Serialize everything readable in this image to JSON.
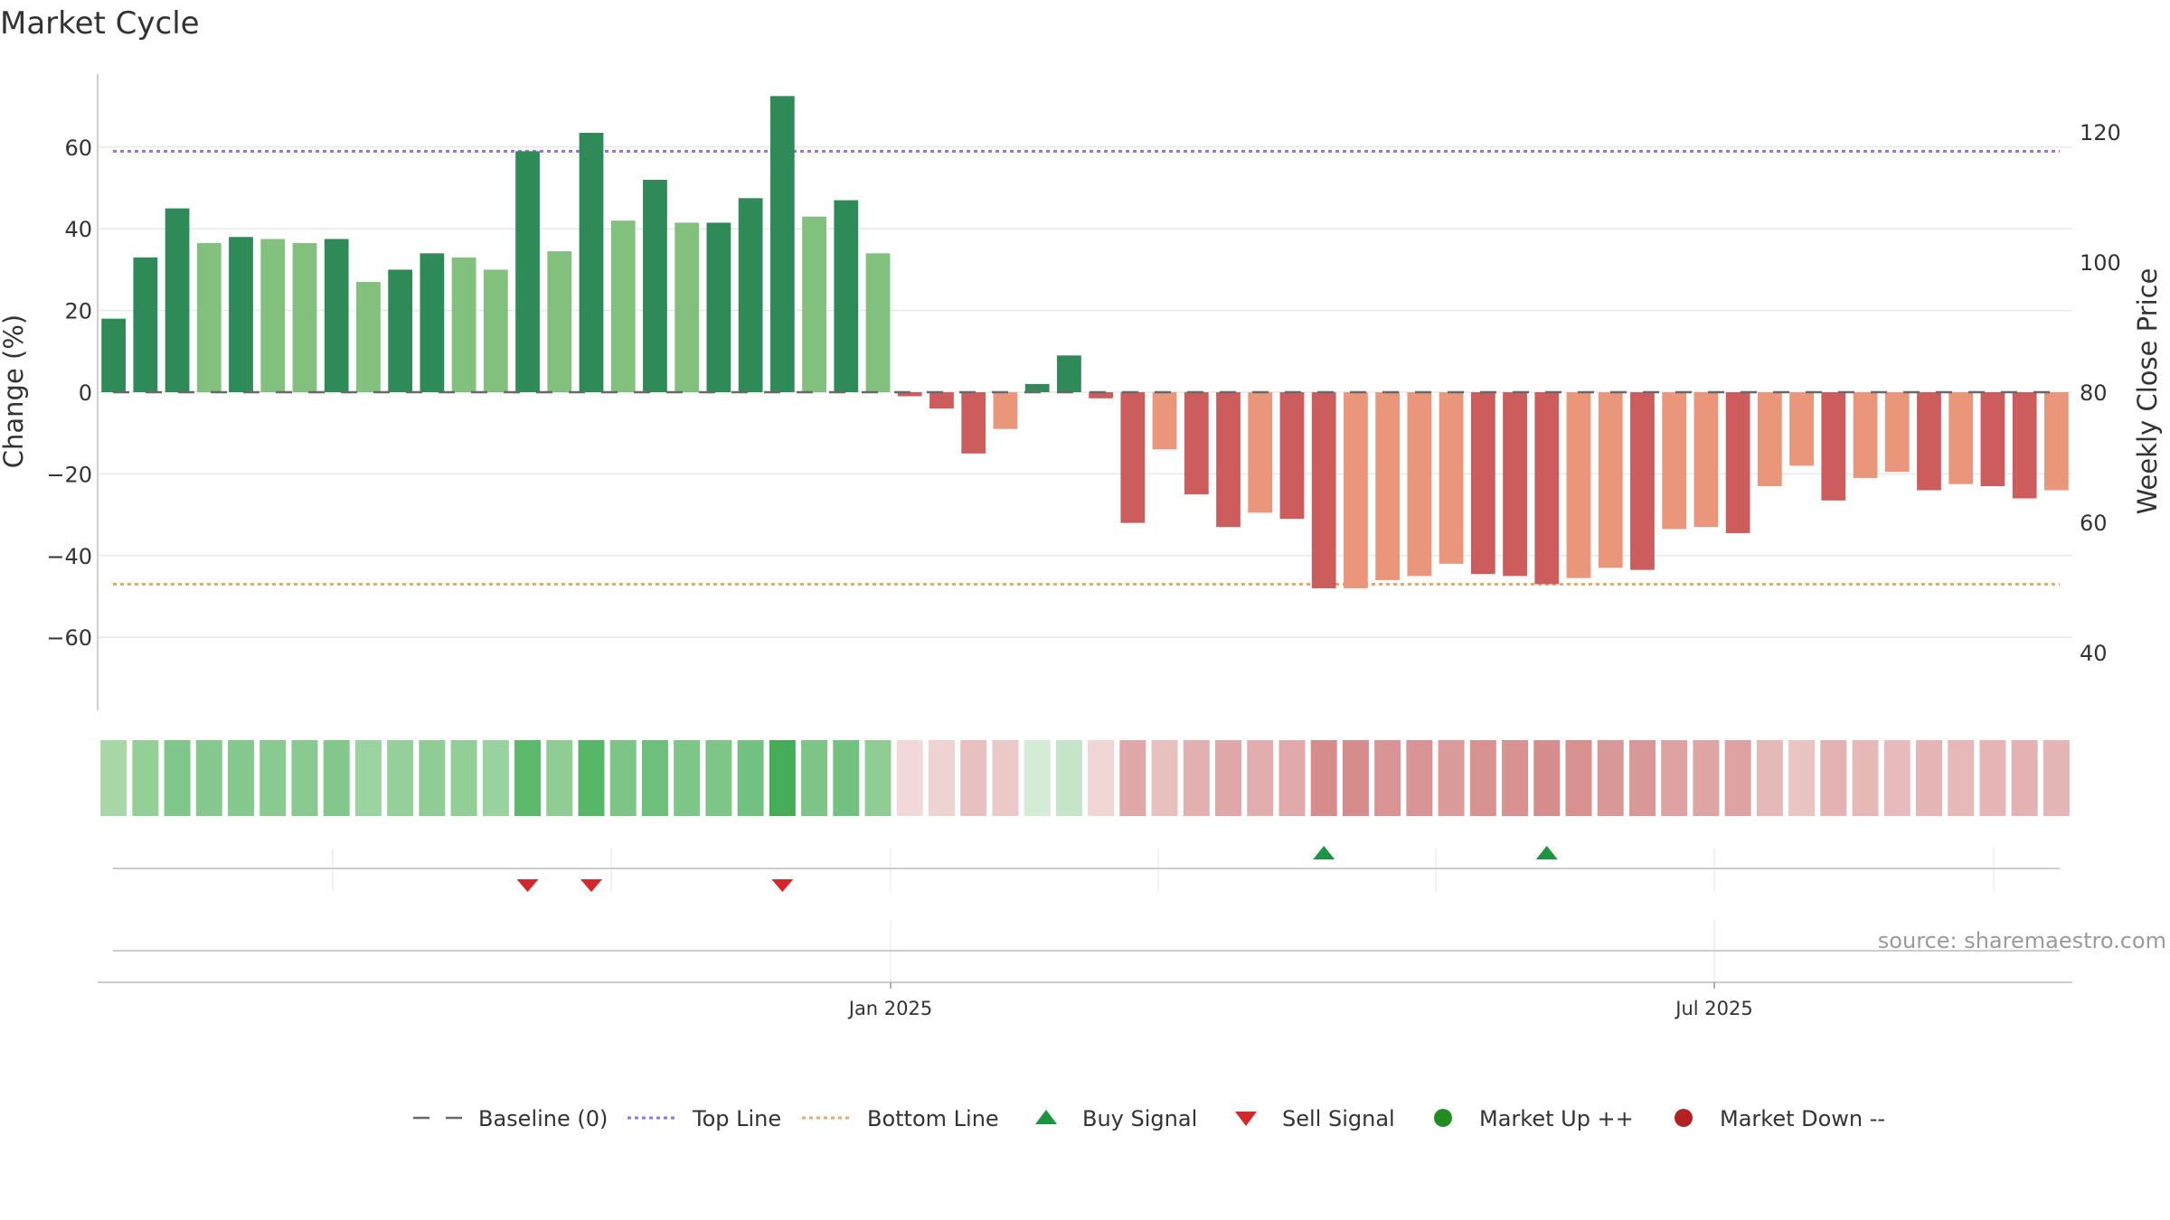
{
  "title": "Market Cycle",
  "source": "source: sharemaestro.com",
  "colors": {
    "up_strong": "#2e8b57",
    "up_light": "#82c17d",
    "down_strong": "#cd5c5c",
    "down_light": "#e9967a",
    "top_line": "#9370db",
    "bottom_line": "#f4a460",
    "baseline": "#696969",
    "buy": "#1a9641",
    "sell": "#d62728",
    "market_up": "#228b22",
    "market_down": "#b22222"
  },
  "chart_data": {
    "type": "bar",
    "ylabel_left": "Change (%)",
    "ylabel_right": "Weekly Close Price",
    "y_left_ticks": [
      60,
      40,
      20,
      0,
      -20,
      -40,
      -60
    ],
    "y_left_tick_labels": [
      "60",
      "40",
      "20",
      "0",
      "−20",
      "−40",
      "−60"
    ],
    "y_right_ticks": [
      120,
      100,
      80,
      60,
      40
    ],
    "y_left_range": [
      -77,
      77
    ],
    "top_line": 59,
    "bottom_line": -47,
    "baseline": 0,
    "x_ticks": [
      "Jan 2025",
      "Jul 2025"
    ],
    "values": [
      18,
      33,
      45,
      36.5,
      38,
      37.5,
      36.5,
      37.5,
      27,
      30,
      34,
      33,
      30,
      59,
      34.5,
      63.5,
      42,
      52,
      41.5,
      41.5,
      47.5,
      72.5,
      43,
      47,
      34,
      -1,
      -4,
      -15,
      -9,
      2,
      9,
      -1.5,
      -32,
      -14,
      -25,
      -33,
      -29.5,
      -31,
      -48,
      -48,
      -46,
      -45,
      -42,
      -44.5,
      -45,
      -47,
      -45.5,
      -43,
      -43.5,
      -33.5,
      -33,
      -34.5,
      -23,
      -18,
      -26.5,
      -21,
      -19.5,
      -24,
      -22.5,
      -23,
      -26,
      -24
    ],
    "strength": [
      "strong",
      "strong",
      "strong",
      "light",
      "strong",
      "light",
      "light",
      "strong",
      "light",
      "strong",
      "strong",
      "light",
      "light",
      "strong",
      "light",
      "strong",
      "light",
      "strong",
      "light",
      "strong",
      "strong",
      "strong",
      "light",
      "strong",
      "light",
      "strong",
      "strong",
      "strong",
      "light",
      "strong",
      "strong",
      "strong",
      "strong",
      "light",
      "strong",
      "strong",
      "light",
      "strong",
      "strong",
      "light",
      "light",
      "light",
      "light",
      "strong",
      "strong",
      "strong",
      "light",
      "light",
      "strong",
      "light",
      "light",
      "strong",
      "light",
      "light",
      "strong",
      "light",
      "light",
      "strong",
      "light",
      "strong",
      "strong",
      "light"
    ],
    "heat_colors": [
      "#a8d8a8",
      "#92d096",
      "#7fc68a",
      "#86c98e",
      "#86c98e",
      "#88ca90",
      "#88ca90",
      "#82c78b",
      "#9bd3a0",
      "#95d09a",
      "#8fcd95",
      "#90ce96",
      "#98d29e",
      "#5cb96c",
      "#8fcd95",
      "#57b768",
      "#7cc587",
      "#6ebf7b",
      "#7dc688",
      "#7dc688",
      "#73c180",
      "#45ad58",
      "#7cc587",
      "#73c180",
      "#8fcd95",
      "#f2d8d8",
      "#efd2d2",
      "#e8c0c0",
      "#ecc9c9",
      "#d3ecd5",
      "#c4e5c8",
      "#f0d5d5",
      "#e0a8a8",
      "#e8c0c0",
      "#e2b0b0",
      "#e0a8a8",
      "#e2adad",
      "#e1a9a9",
      "#d68c8c",
      "#d68c8c",
      "#d99595",
      "#d99595",
      "#db9b9b",
      "#d89292",
      "#d89292",
      "#d68d8d",
      "#d89090",
      "#da9797",
      "#da9797",
      "#dea2a2",
      "#dfa4a4",
      "#dea2a2",
      "#e6b9b9",
      "#eac3c3",
      "#e4b2b2",
      "#e6b8b8",
      "#e7bbbb",
      "#e5b5b5",
      "#e6b8b8",
      "#e5b5b5",
      "#e4b2b2",
      "#e5b5b5"
    ],
    "buy_signals": [
      38,
      45
    ],
    "sell_signals": [
      13,
      15,
      21
    ],
    "legend": [
      {
        "label": "Baseline (0)",
        "symbol": "dash"
      },
      {
        "label": "Top Line",
        "symbol": "dot-purple"
      },
      {
        "label": "Bottom Line",
        "symbol": "dot-orange"
      },
      {
        "label": "Buy Signal",
        "symbol": "tri-up"
      },
      {
        "label": "Sell Signal",
        "symbol": "tri-down"
      },
      {
        "label": "Market Up ++",
        "symbol": "circle-green"
      },
      {
        "label": "Market Down --",
        "symbol": "circle-red"
      }
    ]
  }
}
